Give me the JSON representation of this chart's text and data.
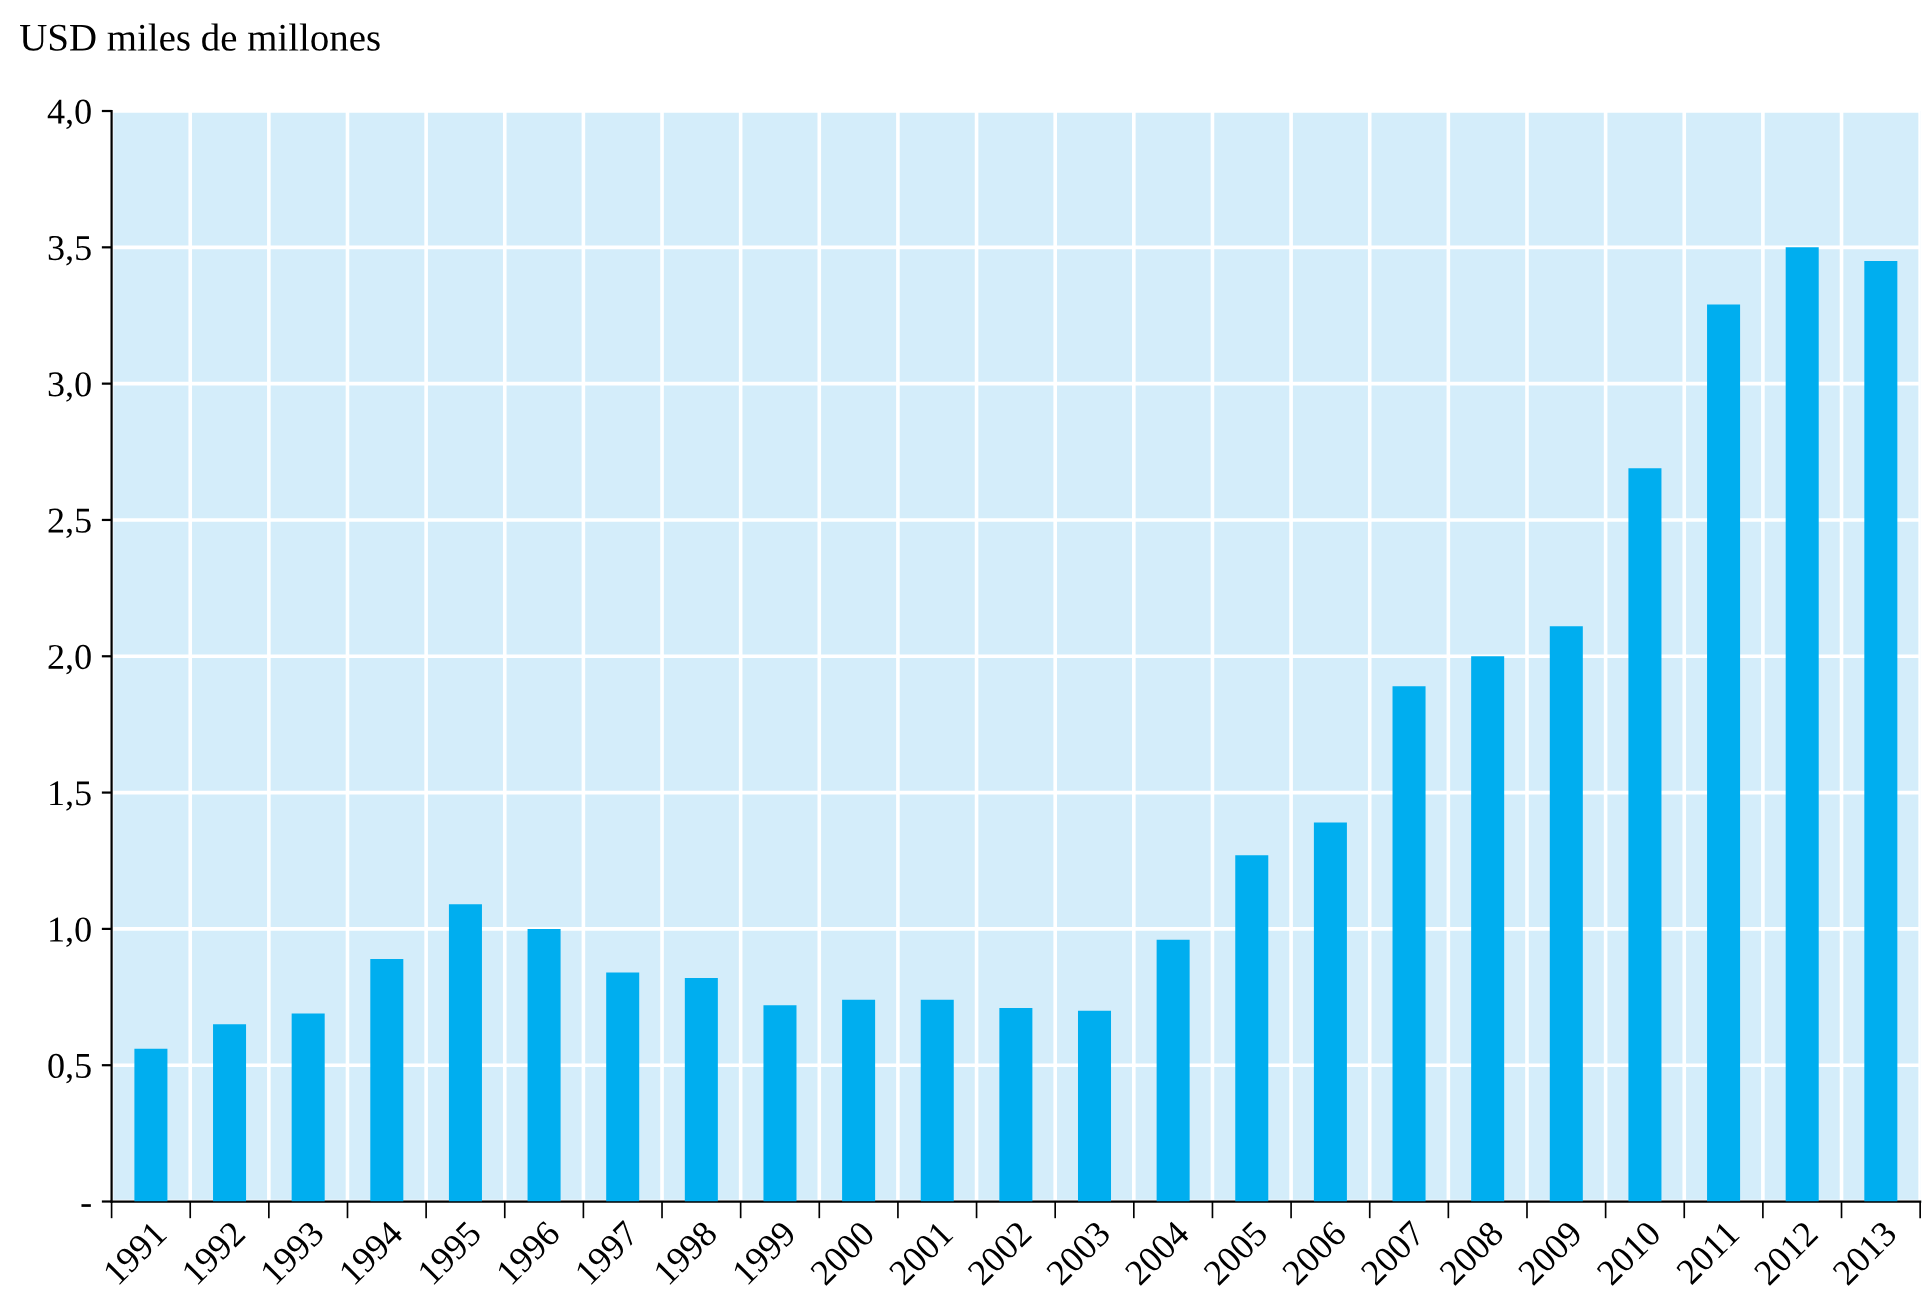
{
  "chart_data": {
    "type": "bar",
    "ylabel": "USD miles de millones",
    "categories": [
      "1991",
      "1992",
      "1993",
      "1994",
      "1995",
      "1996",
      "1997",
      "1998",
      "1999",
      "2000",
      "2001",
      "2002",
      "2003",
      "2004",
      "2005",
      "2006",
      "2007",
      "2008",
      "2009",
      "2010",
      "2011",
      "2012",
      "2013"
    ],
    "values": [
      0.56,
      0.65,
      0.69,
      0.89,
      1.09,
      1.0,
      0.84,
      0.82,
      0.72,
      0.74,
      0.74,
      0.71,
      0.7,
      0.96,
      1.27,
      1.39,
      1.89,
      2.0,
      2.11,
      2.69,
      3.29,
      3.5,
      3.45
    ],
    "color": "#00aeef",
    "ylim": [
      0,
      4
    ],
    "yticks": [
      {
        "value": 0,
        "label": "-"
      },
      {
        "value": 0.5,
        "label": "0,5"
      },
      {
        "value": 1,
        "label": "1,0"
      },
      {
        "value": 1.5,
        "label": "1,5"
      },
      {
        "value": 2,
        "label": "2,0"
      },
      {
        "value": 2.5,
        "label": "2,5"
      },
      {
        "value": 3,
        "label": "3,0"
      },
      {
        "value": 3.5,
        "label": "3,5"
      },
      {
        "value": 4,
        "label": "4,0"
      }
    ],
    "grid": true
  }
}
